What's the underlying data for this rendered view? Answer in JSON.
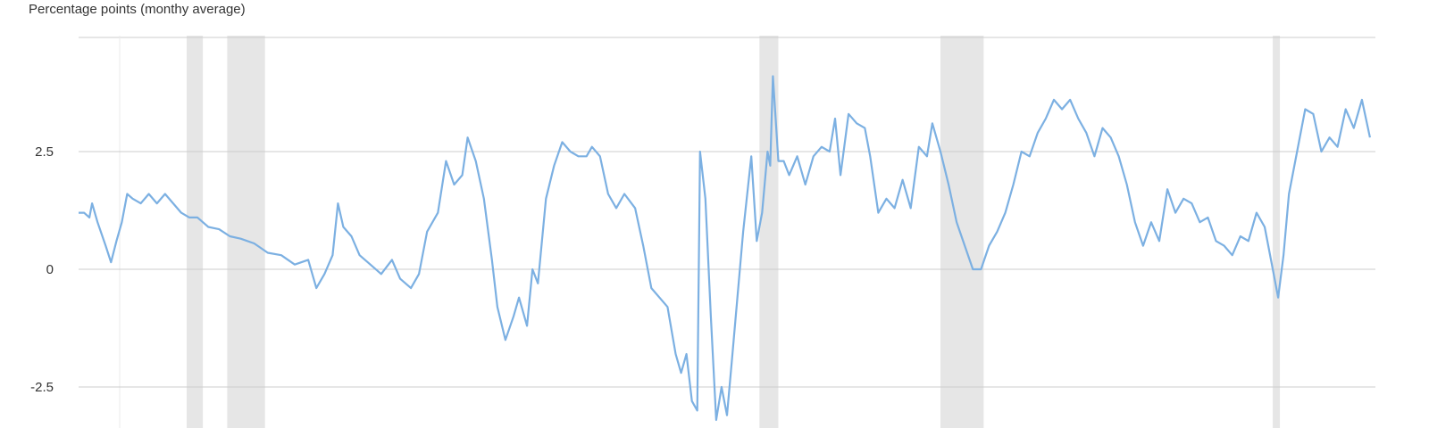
{
  "chart_data": {
    "type": "line",
    "title": "",
    "xlabel": "",
    "ylabel": "Percentage points (monthy average)",
    "ylim": [
      -3.2,
      5.0
    ],
    "yticks": [
      2.5,
      0,
      -2.5
    ],
    "ytick_labels": [
      "2.5",
      "0",
      "-2.5"
    ],
    "xlim": [
      1976,
      2024
    ],
    "grid": true,
    "legend": "none",
    "recessions": [
      [
        1980.0,
        1980.6
      ],
      [
        1981.5,
        1982.9
      ],
      [
        2001.2,
        2001.9
      ],
      [
        2007.9,
        2009.5
      ],
      [
        2020.2,
        2020.4
      ]
    ],
    "series": [
      {
        "color": "#7cb0e2",
        "points": [
          [
            1976.0,
            1.2
          ],
          [
            1976.2,
            1.2
          ],
          [
            1976.4,
            1.1
          ],
          [
            1976.5,
            1.4
          ],
          [
            1976.7,
            1.0
          ],
          [
            1977.0,
            0.5
          ],
          [
            1977.2,
            0.15
          ],
          [
            1977.4,
            0.6
          ],
          [
            1977.6,
            1.0
          ],
          [
            1977.8,
            1.6
          ],
          [
            1978.0,
            1.5
          ],
          [
            1978.3,
            1.4
          ],
          [
            1978.6,
            1.6
          ],
          [
            1978.9,
            1.4
          ],
          [
            1979.2,
            1.6
          ],
          [
            1979.5,
            1.4
          ],
          [
            1979.8,
            1.2
          ],
          [
            1980.1,
            1.1
          ],
          [
            1980.4,
            1.1
          ],
          [
            1980.8,
            0.9
          ],
          [
            1981.2,
            0.85
          ],
          [
            1981.6,
            0.7
          ],
          [
            1982.0,
            0.65
          ],
          [
            1982.5,
            0.55
          ],
          [
            1983.0,
            0.35
          ],
          [
            1983.5,
            0.3
          ],
          [
            1984.0,
            0.1
          ],
          [
            1984.5,
            0.2
          ],
          [
            1984.8,
            -0.4
          ],
          [
            1985.1,
            -0.1
          ],
          [
            1985.4,
            0.3
          ],
          [
            1985.6,
            1.4
          ],
          [
            1985.8,
            0.9
          ],
          [
            1986.1,
            0.7
          ],
          [
            1986.4,
            0.3
          ],
          [
            1986.8,
            0.1
          ],
          [
            1987.2,
            -0.1
          ],
          [
            1987.6,
            0.2
          ],
          [
            1987.9,
            -0.2
          ],
          [
            1988.3,
            -0.4
          ],
          [
            1988.6,
            -0.1
          ],
          [
            1988.9,
            0.8
          ],
          [
            1989.3,
            1.2
          ],
          [
            1989.6,
            2.3
          ],
          [
            1989.9,
            1.8
          ],
          [
            1990.2,
            2.0
          ],
          [
            1990.4,
            2.8
          ],
          [
            1990.7,
            2.3
          ],
          [
            1991.0,
            1.5
          ],
          [
            1991.3,
            0.2
          ],
          [
            1991.5,
            -0.8
          ],
          [
            1991.8,
            -1.5
          ],
          [
            1992.1,
            -1.0
          ],
          [
            1992.3,
            -0.6
          ],
          [
            1992.6,
            -1.2
          ],
          [
            1992.8,
            0.0
          ],
          [
            1993.0,
            -0.3
          ],
          [
            1993.3,
            1.5
          ],
          [
            1993.6,
            2.2
          ],
          [
            1993.9,
            2.7
          ],
          [
            1994.2,
            2.5
          ],
          [
            1994.5,
            2.4
          ],
          [
            1994.8,
            2.4
          ],
          [
            1995.0,
            2.6
          ],
          [
            1995.3,
            2.4
          ],
          [
            1995.6,
            1.6
          ],
          [
            1995.9,
            1.3
          ],
          [
            1996.2,
            1.6
          ],
          [
            1996.6,
            1.3
          ],
          [
            1996.9,
            0.5
          ],
          [
            1997.2,
            -0.4
          ],
          [
            1997.5,
            -0.6
          ],
          [
            1997.8,
            -0.8
          ],
          [
            1998.1,
            -1.8
          ],
          [
            1998.3,
            -2.2
          ],
          [
            1998.5,
            -1.8
          ],
          [
            1998.7,
            -2.8
          ],
          [
            1998.9,
            -3.0
          ],
          [
            1999.0,
            2.5
          ],
          [
            1999.2,
            1.5
          ],
          [
            1999.4,
            -1.0
          ],
          [
            1999.6,
            -3.2
          ],
          [
            1999.8,
            -2.5
          ],
          [
            2000.0,
            -3.1
          ],
          [
            2000.2,
            -1.8
          ],
          [
            2000.4,
            -0.5
          ],
          [
            2000.6,
            0.8
          ],
          [
            2000.9,
            2.4
          ],
          [
            2001.1,
            0.6
          ],
          [
            2001.3,
            1.2
          ],
          [
            2001.5,
            2.5
          ],
          [
            2001.6,
            2.2
          ],
          [
            2001.7,
            4.1
          ],
          [
            2001.9,
            2.3
          ],
          [
            2002.1,
            2.3
          ],
          [
            2002.3,
            2.0
          ],
          [
            2002.6,
            2.4
          ],
          [
            2002.9,
            1.8
          ],
          [
            2003.2,
            2.4
          ],
          [
            2003.5,
            2.6
          ],
          [
            2003.8,
            2.5
          ],
          [
            2004.0,
            3.2
          ],
          [
            2004.2,
            2.0
          ],
          [
            2004.5,
            3.3
          ],
          [
            2004.8,
            3.1
          ],
          [
            2005.1,
            3.0
          ],
          [
            2005.3,
            2.4
          ],
          [
            2005.6,
            1.2
          ],
          [
            2005.9,
            1.5
          ],
          [
            2006.2,
            1.3
          ],
          [
            2006.5,
            1.9
          ],
          [
            2006.8,
            1.3
          ],
          [
            2007.1,
            2.6
          ],
          [
            2007.4,
            2.4
          ],
          [
            2007.6,
            3.1
          ],
          [
            2007.9,
            2.5
          ],
          [
            2008.2,
            1.8
          ],
          [
            2008.5,
            1.0
          ],
          [
            2008.8,
            0.5
          ],
          [
            2009.1,
            0.0
          ],
          [
            2009.4,
            0.0
          ],
          [
            2009.7,
            0.5
          ],
          [
            2010.0,
            0.8
          ],
          [
            2010.3,
            1.2
          ],
          [
            2010.6,
            1.8
          ],
          [
            2010.9,
            2.5
          ],
          [
            2011.2,
            2.4
          ],
          [
            2011.5,
            2.9
          ],
          [
            2011.8,
            3.2
          ],
          [
            2012.1,
            3.6
          ],
          [
            2012.4,
            3.4
          ],
          [
            2012.7,
            3.6
          ],
          [
            2013.0,
            3.2
          ],
          [
            2013.3,
            2.9
          ],
          [
            2013.6,
            2.4
          ],
          [
            2013.9,
            3.0
          ],
          [
            2014.2,
            2.8
          ],
          [
            2014.5,
            2.4
          ],
          [
            2014.8,
            1.8
          ],
          [
            2015.1,
            1.0
          ],
          [
            2015.4,
            0.5
          ],
          [
            2015.7,
            1.0
          ],
          [
            2016.0,
            0.6
          ],
          [
            2016.3,
            1.7
          ],
          [
            2016.6,
            1.2
          ],
          [
            2016.9,
            1.5
          ],
          [
            2017.2,
            1.4
          ],
          [
            2017.5,
            1.0
          ],
          [
            2017.8,
            1.1
          ],
          [
            2018.1,
            0.6
          ],
          [
            2018.4,
            0.5
          ],
          [
            2018.7,
            0.3
          ],
          [
            2019.0,
            0.7
          ],
          [
            2019.3,
            0.6
          ],
          [
            2019.6,
            1.2
          ],
          [
            2019.9,
            0.9
          ],
          [
            2020.2,
            0.0
          ],
          [
            2020.4,
            -0.6
          ],
          [
            2020.6,
            0.3
          ],
          [
            2020.8,
            1.6
          ],
          [
            2021.1,
            2.5
          ],
          [
            2021.4,
            3.4
          ],
          [
            2021.7,
            3.3
          ],
          [
            2022.0,
            2.5
          ],
          [
            2022.3,
            2.8
          ],
          [
            2022.6,
            2.6
          ],
          [
            2022.9,
            3.4
          ],
          [
            2023.2,
            3.0
          ],
          [
            2023.5,
            3.6
          ],
          [
            2023.8,
            2.8
          ]
        ]
      }
    ]
  }
}
